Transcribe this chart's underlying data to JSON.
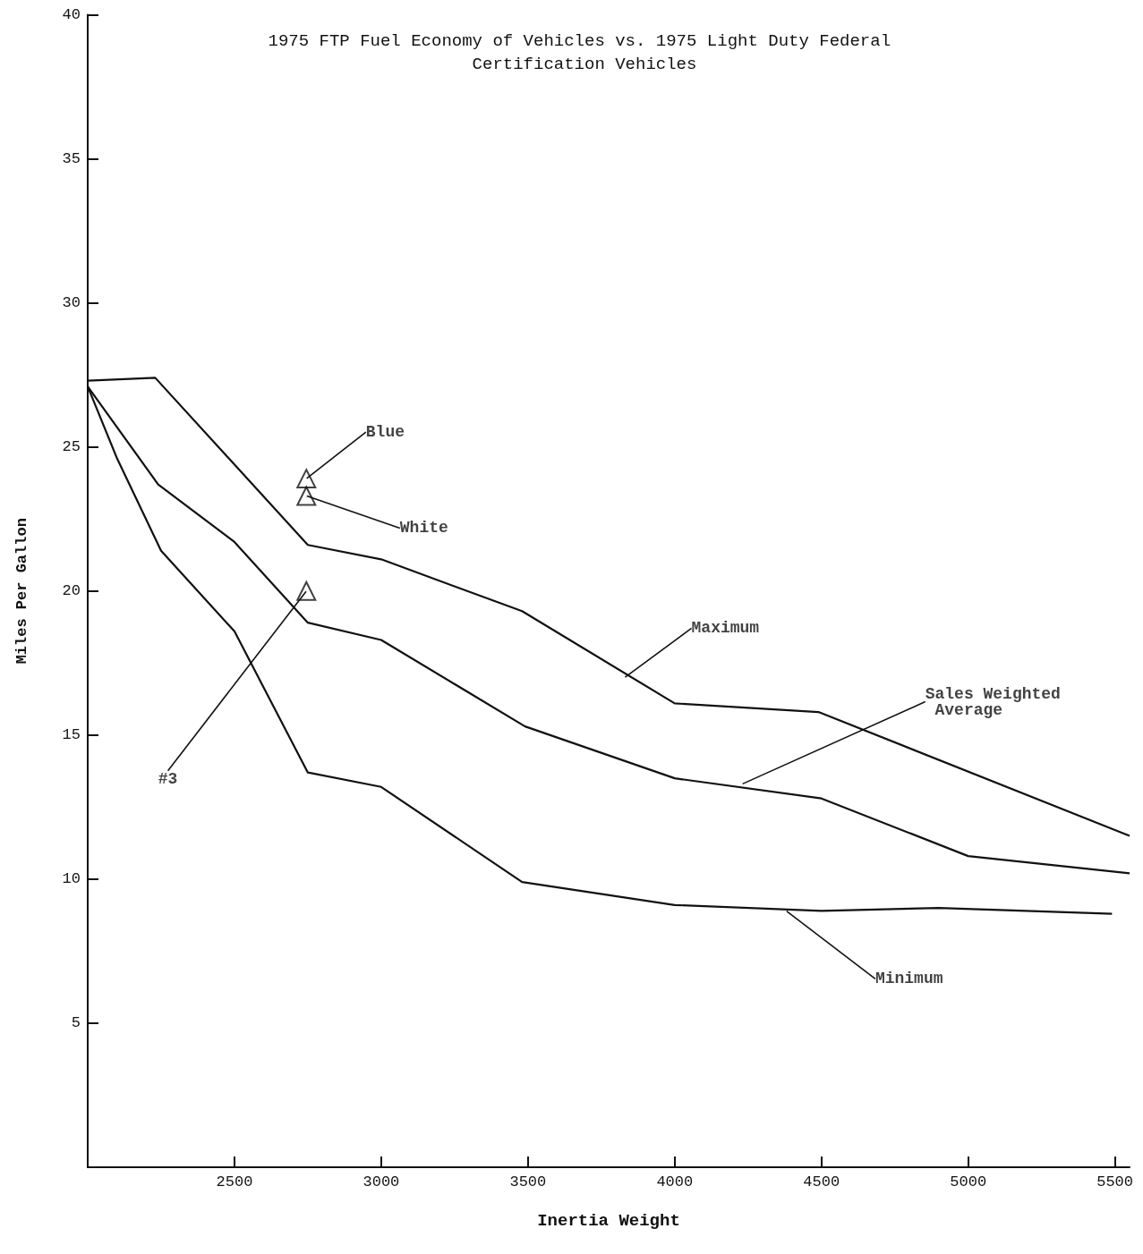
{
  "chart_data": {
    "type": "line",
    "title": "1975 FTP Fuel Economy of Vehicles vs. 1975 Light Duty Federal Certification Vehicles",
    "xlabel": "Inertia Weight",
    "ylabel": "Miles Per Gallon",
    "xlim": [
      2000,
      5550
    ],
    "xticks": [
      2500,
      3000,
      3500,
      4000,
      4500,
      5000,
      5500
    ],
    "ylim": [
      0,
      40
    ],
    "yticks": [
      5,
      10,
      15,
      20,
      25,
      30,
      35,
      40
    ],
    "grid": false,
    "marker": "none",
    "line_style": "solid",
    "series": [
      {
        "color": "#111111",
        "x": [
          2000,
          2230,
          2750,
          3000,
          3480,
          4000,
          4490,
          5550
        ],
        "values": [
          27.3,
          27.4,
          21.6,
          21.1,
          19.3,
          16.1,
          15.8,
          11.5
        ]
      },
      {
        "color": "#111111",
        "x": [
          2000,
          2240,
          2500,
          2750,
          3000,
          3490,
          4000,
          4500,
          5000,
          5550
        ],
        "values": [
          27.1,
          23.7,
          21.7,
          18.9,
          18.3,
          15.3,
          13.5,
          12.8,
          10.8,
          10.2
        ]
      },
      {
        "color": "#111111",
        "x": [
          2000,
          2100,
          2250,
          2500,
          2750,
          3000,
          3480,
          4000,
          4500,
          4900,
          5490
        ],
        "values": [
          27.1,
          24.6,
          21.4,
          18.6,
          13.7,
          13.2,
          9.9,
          9.1,
          8.9,
          9.0,
          8.8
        ]
      },
      {
        "type": "scatter",
        "marker": "triangle",
        "color": "#111111",
        "x": [
          2745,
          2745,
          2745
        ],
        "values": [
          23.9,
          23.3,
          20.0
        ]
      }
    ],
    "annotations": [
      {
        "text": "Blue",
        "x": 2745,
        "y": 23.9
      },
      {
        "text": "White",
        "x": 2745,
        "y": 23.3
      },
      {
        "text": "#3",
        "x": 2745,
        "y": 20.0
      },
      {
        "text": "Maximum",
        "x": 3830,
        "y": 17.0
      },
      {
        "text": "Sales Weighted Average",
        "x": 4230,
        "y": 13.3
      },
      {
        "text": "Minimum",
        "x": 4380,
        "y": 8.9
      }
    ]
  }
}
